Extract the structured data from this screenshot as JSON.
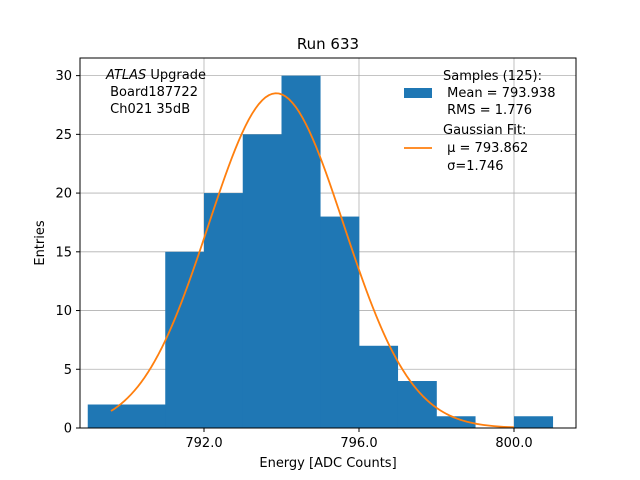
{
  "chart_data": {
    "type": "histogram",
    "title": "Run 633",
    "xlabel": "Energy [ADC Counts]",
    "ylabel": "Entries",
    "xlim": [
      788.8,
      801.6
    ],
    "ylim": [
      0,
      31.5
    ],
    "grid": true,
    "xticks": [
      792.0,
      796.0,
      800.0
    ],
    "xtick_labels": [
      "792.0",
      "796.0",
      "800.0"
    ],
    "yticks": [
      0,
      5,
      10,
      15,
      20,
      25,
      30
    ],
    "ytick_labels": [
      "0",
      "5",
      "10",
      "15",
      "20",
      "25",
      "30"
    ],
    "bins": [
      {
        "start": 789,
        "end": 790,
        "count": 2
      },
      {
        "start": 790,
        "end": 791,
        "count": 2
      },
      {
        "start": 791,
        "end": 792,
        "count": 15
      },
      {
        "start": 792,
        "end": 793,
        "count": 20
      },
      {
        "start": 793,
        "end": 794,
        "count": 25
      },
      {
        "start": 794,
        "end": 795,
        "count": 30
      },
      {
        "start": 795,
        "end": 796,
        "count": 18
      },
      {
        "start": 796,
        "end": 797,
        "count": 7
      },
      {
        "start": 797,
        "end": 798,
        "count": 4
      },
      {
        "start": 798,
        "end": 799,
        "count": 1
      },
      {
        "start": 799,
        "end": 800,
        "count": 0
      },
      {
        "start": 800,
        "end": 801,
        "count": 1
      }
    ],
    "fit": {
      "name": "Gaussian Fit",
      "mu": 793.862,
      "sigma": 1.746,
      "amplitude": 28.5,
      "x_range": [
        789.6,
        800.0
      ]
    },
    "colors": {
      "hist": "#1f77b4",
      "fit": "#ff7f0e",
      "grid": "#b0b0b0"
    },
    "legend": {
      "position": "top-right",
      "hist_lines": [
        "Samples (125):",
        " Mean = 793.938",
        " RMS = 1.776"
      ],
      "fit_lines": [
        "Gaussian Fit:",
        " μ = 793.862",
        " σ=1.746"
      ]
    },
    "annotation": {
      "italic": "ATLAS",
      "rest": " Upgrade",
      "lines": [
        " Board187722",
        " Ch021 35dB"
      ]
    }
  }
}
